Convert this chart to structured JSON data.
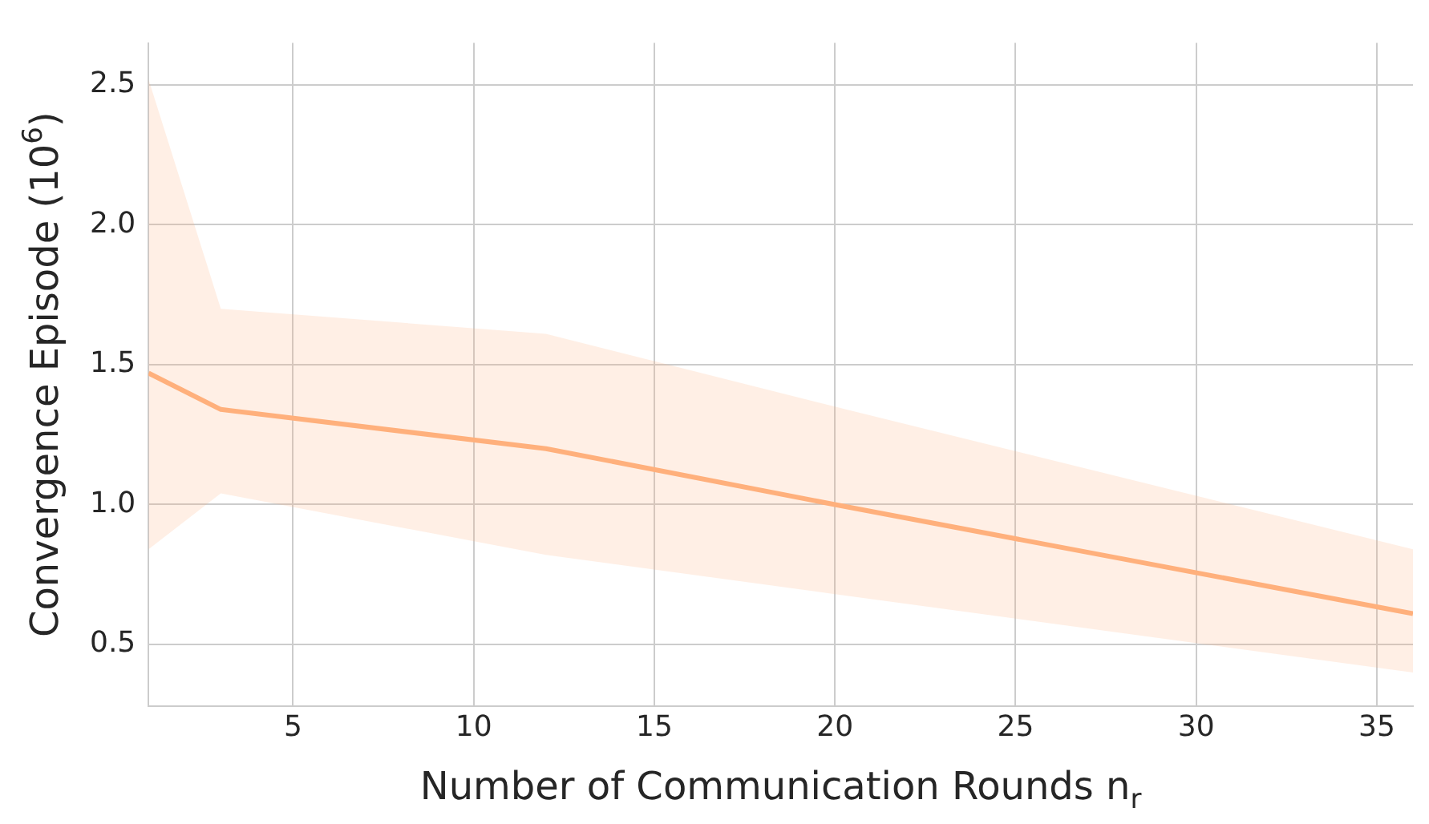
{
  "chart_data": {
    "type": "line",
    "xlabel": "Number of Communication Rounds n$_{r}$",
    "ylabel": "Convergence Episode (10$^{6}$)",
    "x": [
      1,
      3,
      12,
      20,
      36
    ],
    "series": [
      {
        "color": "#ffb07c",
        "values": [
          1.47,
          1.34,
          1.2,
          1.0,
          0.61
        ],
        "lower": [
          0.84,
          1.04,
          0.82,
          0.68,
          0.4
        ],
        "upper": [
          2.52,
          1.7,
          1.61,
          1.35,
          0.84
        ]
      }
    ],
    "xlim": [
      1,
      36
    ],
    "ylim": [
      0.28,
      2.65
    ],
    "xticks": [
      5,
      10,
      15,
      20,
      25,
      30,
      35
    ],
    "yticks": [
      {
        "value": 0.5,
        "label": "0.5"
      },
      {
        "value": 1.0,
        "label": "1.0"
      },
      {
        "value": 1.5,
        "label": "1.5"
      },
      {
        "value": 2.0,
        "label": "2.0"
      },
      {
        "value": 2.5,
        "label": "2.5"
      }
    ],
    "grid": true,
    "legend": false,
    "marker": "none",
    "line_style": "solid"
  }
}
